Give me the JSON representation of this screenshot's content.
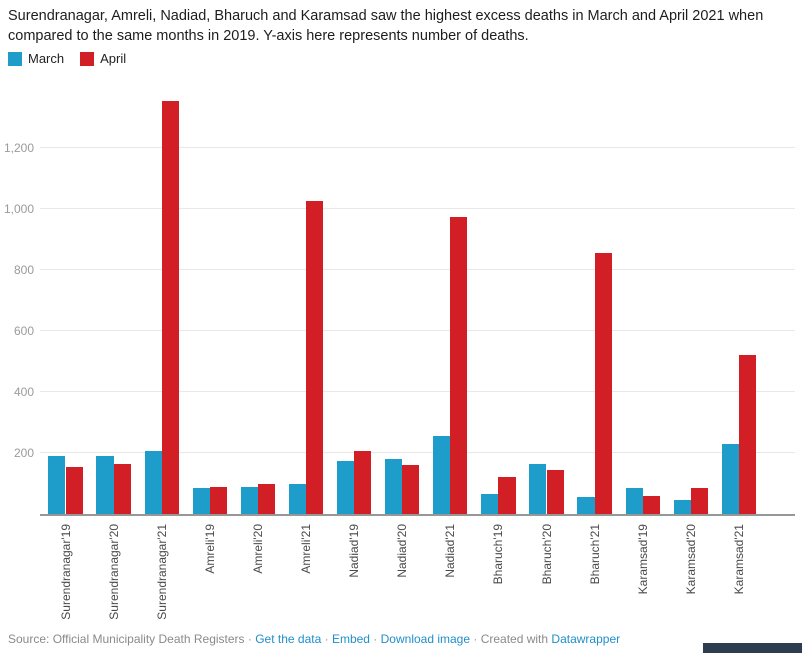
{
  "title": "Surendranagar, Amreli, Nadiad, Bharuch and Karamsad saw the highest excess deaths in March and April 2021 when compared to the same months in 2019. Y-axis here represents number of deaths.",
  "chart_data": {
    "type": "bar",
    "title": "Surendranagar, Amreli, Nadiad, Bharuch and Karamsad saw the highest excess deaths in March and April 2021 when compared to the same months in 2019. Y-axis here represents number of deaths.",
    "categories": [
      "Surendranagar'19",
      "Surendranagar'20",
      "Surendranagar'21",
      "Amreli'19",
      "Amreli'20",
      "Amreli'21",
      "Nadiad'19",
      "Nadiad'20",
      "Nadiad'21",
      "Bharuch'19",
      "Bharuch'20",
      "Bharuch'21",
      "Karamsad'19",
      "Karamsad'20",
      "Karamsad'21"
    ],
    "series": [
      {
        "name": "March",
        "color": "#1f9dca",
        "values": [
          190,
          190,
          205,
          85,
          90,
          100,
          175,
          180,
          255,
          65,
          165,
          55,
          85,
          45,
          230
        ]
      },
      {
        "name": "April",
        "color": "#d21e25",
        "values": [
          155,
          165,
          1355,
          90,
          100,
          1025,
          205,
          160,
          975,
          120,
          145,
          855,
          60,
          85,
          520
        ]
      }
    ],
    "xlabel": "",
    "ylabel": "number of deaths",
    "yticks": [
      200,
      400,
      600,
      800,
      1000,
      1200
    ],
    "ytick_labels": [
      "200",
      "400",
      "600",
      "800",
      "1,000",
      "1,200"
    ],
    "ylim": [
      0,
      1400
    ],
    "grid": "horizontal",
    "legend_position": "top-left",
    "bar_orientation": "vertical",
    "xlabel_rotation": "vertical-bottom-to-top"
  },
  "footer": {
    "segments": [
      {
        "type": "text",
        "text": "Source: Official Municipality Death Registers"
      },
      {
        "type": "sep",
        "text": " · "
      },
      {
        "type": "link",
        "text": "Get the data",
        "name": "get-the-data-link"
      },
      {
        "type": "sep",
        "text": " · "
      },
      {
        "type": "link",
        "text": "Embed",
        "name": "embed-link"
      },
      {
        "type": "sep",
        "text": " · "
      },
      {
        "type": "link",
        "text": "Download image",
        "name": "download-image-link"
      },
      {
        "type": "sep",
        "text": " · "
      },
      {
        "type": "text",
        "text": "Created with "
      },
      {
        "type": "link",
        "text": "Datawrapper",
        "name": "datawrapper-link"
      }
    ]
  },
  "colors": {
    "march": "#1f9dca",
    "april": "#d21e25",
    "gridline": "#e8e8e8",
    "axis_line": "#979797",
    "ytick_text": "#9b9b9b",
    "xlabel_text": "#4a4a4a",
    "footer_link": "#1f8fca",
    "corner_fragment": "#2d3c4f"
  }
}
